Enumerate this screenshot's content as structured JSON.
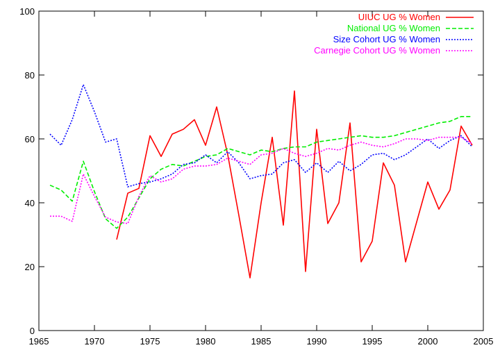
{
  "chart_data": {
    "type": "line",
    "title": "",
    "xlabel": "",
    "ylabel": "",
    "xlim": [
      1965,
      2005
    ],
    "ylim": [
      0,
      100
    ],
    "x_ticks": [
      1965,
      1970,
      1975,
      1980,
      1985,
      1990,
      1995,
      2000,
      2005
    ],
    "y_ticks": [
      0,
      20,
      40,
      60,
      80,
      100
    ],
    "grid": false,
    "legend_position": "top-right",
    "series": [
      {
        "name": "UIUC UG % Women",
        "color": "#ff0000",
        "dash": "solid",
        "x": [
          1972,
          1973,
          1974,
          1975,
          1976,
          1977,
          1978,
          1979,
          1980,
          1981,
          1982,
          1983,
          1984,
          1985,
          1986,
          1987,
          1988,
          1989,
          1990,
          1991,
          1992,
          1993,
          1994,
          1995,
          1996,
          1997,
          1998,
          1999,
          2000,
          2001,
          2002,
          2003,
          2004
        ],
        "y": [
          28.5,
          43,
          44.5,
          61,
          54.5,
          61.5,
          63,
          66,
          58,
          70,
          55,
          36,
          16.5,
          40,
          60.5,
          33,
          75,
          18.5,
          63,
          33.5,
          40,
          65,
          21.5,
          28,
          52.5,
          45.5,
          21.5,
          34,
          46.5,
          38,
          44,
          64,
          58
        ]
      },
      {
        "name": "National UG % Women",
        "color": "#00ee00",
        "dash": "dashed",
        "x": [
          1966,
          1967,
          1968,
          1969,
          1970,
          1971,
          1972,
          1973,
          1974,
          1975,
          1976,
          1977,
          1978,
          1979,
          1980,
          1981,
          1982,
          1983,
          1984,
          1985,
          1986,
          1987,
          1988,
          1989,
          1990,
          1991,
          1992,
          1993,
          1994,
          1995,
          1996,
          1997,
          1998,
          1999,
          2000,
          2001,
          2002,
          2003,
          2004
        ],
        "y": [
          45.5,
          44,
          40.5,
          53,
          43.5,
          35,
          32,
          35.5,
          41.5,
          47.5,
          50.5,
          52,
          51.5,
          53,
          54.5,
          55,
          57,
          56,
          55,
          56.5,
          56,
          57,
          57.5,
          57.5,
          59,
          59.5,
          60,
          60.5,
          61,
          60.5,
          60.5,
          61,
          62,
          63,
          64,
          65,
          65.5,
          67,
          67
        ]
      },
      {
        "name": "Size Cohort UG % Women",
        "color": "#0000ff",
        "dash": "dotted",
        "x": [
          1966,
          1967,
          1968,
          1969,
          1970,
          1971,
          1972,
          1973,
          1974,
          1975,
          1976,
          1977,
          1978,
          1979,
          1980,
          1981,
          1982,
          1983,
          1984,
          1985,
          1986,
          1987,
          1988,
          1989,
          1990,
          1991,
          1992,
          1993,
          1994,
          1995,
          1996,
          1997,
          1998,
          1999,
          2000,
          2001,
          2002,
          2003,
          2004
        ],
        "y": [
          61.5,
          58,
          66,
          77,
          68.5,
          59,
          60,
          45,
          46,
          46.5,
          47.5,
          49,
          52,
          52.5,
          55,
          52.5,
          56,
          52.5,
          47.5,
          48.5,
          49,
          52.5,
          53.5,
          49.5,
          52.5,
          49.5,
          53,
          50,
          52,
          55,
          55.5,
          53.5,
          55,
          57.5,
          60,
          57,
          59.5,
          61,
          57.5
        ]
      },
      {
        "name": "Carnegie Cohort UG % Women",
        "color": "#ff00ff",
        "dash": "dotted",
        "x": [
          1966,
          1967,
          1968,
          1969,
          1970,
          1971,
          1972,
          1973,
          1974,
          1975,
          1976,
          1977,
          1978,
          1979,
          1980,
          1981,
          1982,
          1983,
          1984,
          1985,
          1986,
          1987,
          1988,
          1989,
          1990,
          1991,
          1992,
          1993,
          1994,
          1995,
          1996,
          1997,
          1998,
          1999,
          2000,
          2001,
          2002,
          2003,
          2004
        ],
        "y": [
          35.8,
          35.8,
          34.2,
          49,
          42,
          35.5,
          34,
          33.5,
          42,
          48.5,
          46.5,
          47.5,
          50.5,
          51.5,
          51.5,
          52,
          54,
          53,
          52,
          55,
          55.5,
          57,
          55.5,
          54.5,
          55.5,
          57,
          56.5,
          58,
          59,
          58,
          57.5,
          58.5,
          60,
          60,
          59.5,
          60.5,
          60.5,
          60.5,
          58.5
        ]
      }
    ]
  }
}
